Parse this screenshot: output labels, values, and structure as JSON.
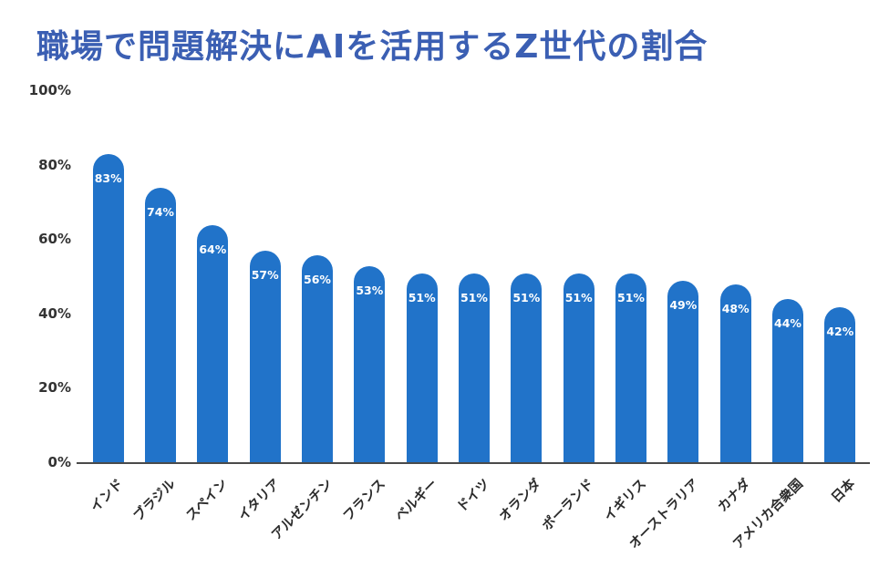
{
  "title": "職場で問題解決にAIを活用するZ世代の割合",
  "chart_data": {
    "type": "bar",
    "title": "職場で問題解決にAIを活用するZ世代の割合",
    "categories": [
      "インド",
      "ブラジル",
      "スペイン",
      "イタリア",
      "アルゼンチン",
      "フランス",
      "ベルギー",
      "ドイツ",
      "オランダ",
      "ポーランド",
      "イギリス",
      "オーストラリア",
      "カナダ",
      "アメリカ合衆国",
      "日本"
    ],
    "values": [
      83,
      74,
      64,
      57,
      56,
      53,
      51,
      51,
      51,
      51,
      51,
      49,
      48,
      44,
      42
    ],
    "value_suffix": "%",
    "xlabel": "",
    "ylabel": "",
    "ylim": [
      0,
      100
    ],
    "y_ticks": [
      "0%",
      "20%",
      "40%",
      "60%",
      "80%",
      "100%"
    ],
    "grid": false,
    "legend_position": "none",
    "bar_color": "#2173c9",
    "value_label_color": "#ffffff",
    "title_color": "#3b5fb3",
    "axis_text_color": "#333333"
  }
}
